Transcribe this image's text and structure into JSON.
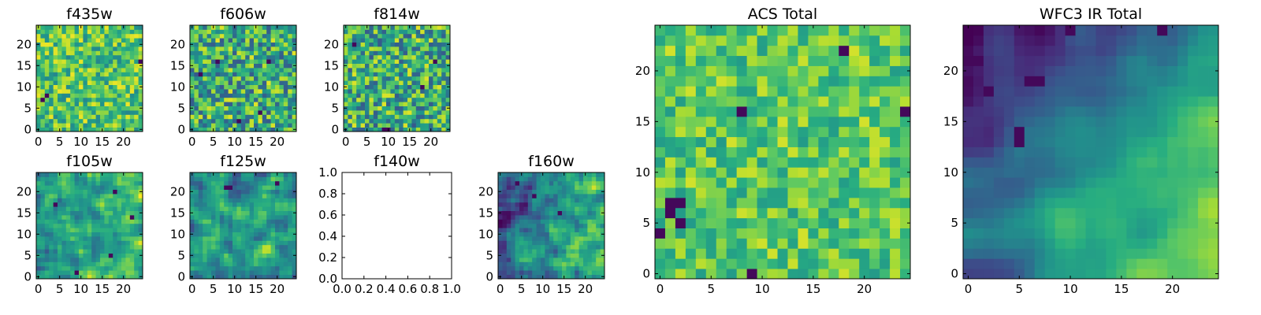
{
  "figure": {
    "colormap": "viridis",
    "grid_size": 25,
    "colors": {
      "viridis_low": "#440154",
      "viridis_mid": "#21918c",
      "viridis_high": "#fde725",
      "frame": "#000000",
      "background": "#ffffff"
    }
  },
  "chart_data": [
    {
      "id": "f435w",
      "type": "heatmap",
      "title": "f435w",
      "xticks": [
        "0",
        "5",
        "10",
        "15",
        "20"
      ],
      "yticks": [
        "0",
        "5",
        "10",
        "15",
        "20"
      ],
      "xlim": [
        0,
        25
      ],
      "ylim": [
        0,
        25
      ],
      "seed": 11,
      "mean": 0.72,
      "spread": 0.26,
      "smooth": 0,
      "gradient": [
        0,
        0
      ],
      "lows": [
        [
          1,
          7
        ],
        [
          2,
          8
        ],
        [
          24,
          16
        ]
      ]
    },
    {
      "id": "f606w",
      "type": "heatmap",
      "title": "f606w",
      "xticks": [
        "0",
        "5",
        "10",
        "15",
        "20"
      ],
      "yticks": [
        "0",
        "5",
        "10",
        "15",
        "20"
      ],
      "xlim": [
        0,
        25
      ],
      "ylim": [
        0,
        25
      ],
      "seed": 23,
      "mean": 0.62,
      "spread": 0.34,
      "smooth": 0,
      "gradient": [
        0,
        0
      ],
      "lows": [
        [
          6,
          16
        ],
        [
          18,
          16
        ],
        [
          2,
          13
        ],
        [
          16,
          4
        ],
        [
          11,
          2
        ]
      ]
    },
    {
      "id": "f814w",
      "type": "heatmap",
      "title": "f814w",
      "xticks": [
        "0",
        "5",
        "10",
        "15",
        "20"
      ],
      "yticks": [
        "0",
        "5",
        "10",
        "15",
        "20"
      ],
      "xlim": [
        0,
        25
      ],
      "ylim": [
        0,
        25
      ],
      "seed": 37,
      "mean": 0.62,
      "spread": 0.34,
      "smooth": 0,
      "gradient": [
        0,
        0
      ],
      "lows": [
        [
          9,
          0
        ],
        [
          10,
          0
        ],
        [
          2,
          20
        ],
        [
          21,
          16
        ],
        [
          18,
          10
        ]
      ]
    },
    {
      "id": "f105w",
      "type": "heatmap",
      "title": "f105w",
      "xticks": [
        "0",
        "5",
        "10",
        "15",
        "20"
      ],
      "yticks": [
        "0",
        "5",
        "10",
        "15",
        "20"
      ],
      "xlim": [
        0,
        25
      ],
      "ylim": [
        0,
        25
      ],
      "seed": 41,
      "mean": 0.6,
      "spread": 0.3,
      "smooth": 1,
      "gradient": [
        0.05,
        0
      ],
      "lows": [
        [
          18,
          20
        ],
        [
          4,
          17
        ],
        [
          9,
          1
        ],
        [
          17,
          5
        ],
        [
          22,
          14
        ]
      ]
    },
    {
      "id": "f125w",
      "type": "heatmap",
      "title": "f125w",
      "xticks": [
        "0",
        "5",
        "10",
        "15",
        "20"
      ],
      "yticks": [
        "0",
        "5",
        "10",
        "15",
        "20"
      ],
      "xlim": [
        0,
        25
      ],
      "ylim": [
        0,
        25
      ],
      "seed": 53,
      "mean": 0.55,
      "spread": 0.3,
      "smooth": 1,
      "gradient": [
        0.08,
        0
      ],
      "lows": [
        [
          8,
          21
        ],
        [
          9,
          21
        ],
        [
          20,
          22
        ]
      ]
    },
    {
      "id": "f140w",
      "type": "empty",
      "title": "f140w",
      "xticks": [
        "0.0",
        "0.2",
        "0.4",
        "0.6",
        "0.8",
        "1.0"
      ],
      "yticks": [
        "0.0",
        "0.2",
        "0.4",
        "0.6",
        "0.8",
        "1.0"
      ],
      "xlim": [
        0,
        1
      ],
      "ylim": [
        0,
        1
      ]
    },
    {
      "id": "f160w",
      "type": "heatmap",
      "title": "f160w",
      "xticks": [
        "0",
        "5",
        "10",
        "15",
        "20"
      ],
      "yticks": [
        "0",
        "5",
        "10",
        "15",
        "20"
      ],
      "xlim": [
        0,
        25
      ],
      "ylim": [
        0,
        25
      ],
      "seed": 67,
      "mean": 0.5,
      "spread": 0.32,
      "smooth": 1,
      "gradient": [
        0.2,
        -0.05
      ],
      "lows": [
        [
          4,
          22
        ],
        [
          8,
          19
        ],
        [
          14,
          15
        ]
      ]
    },
    {
      "id": "acs-total",
      "type": "heatmap",
      "title": "ACS Total",
      "xticks": [
        "0",
        "5",
        "10",
        "15",
        "20"
      ],
      "yticks": [
        "0",
        "5",
        "10",
        "15",
        "20"
      ],
      "xlim": [
        0,
        25
      ],
      "ylim": [
        0,
        25
      ],
      "seed": 79,
      "mean": 0.74,
      "spread": 0.2,
      "smooth": 0,
      "gradient": [
        0,
        0
      ],
      "lows": [
        [
          1,
          7
        ],
        [
          2,
          7
        ],
        [
          1,
          6
        ],
        [
          2,
          5
        ],
        [
          0,
          4
        ],
        [
          8,
          16
        ],
        [
          18,
          22
        ],
        [
          24,
          16
        ],
        [
          9,
          0
        ]
      ]
    },
    {
      "id": "wfc3-ir-total",
      "type": "heatmap",
      "title": "WFC3 IR Total",
      "xticks": [
        "0",
        "5",
        "10",
        "15",
        "20"
      ],
      "yticks": [
        "0",
        "5",
        "10",
        "15",
        "20"
      ],
      "xlim": [
        0,
        25
      ],
      "ylim": [
        0,
        25
      ],
      "seed": 97,
      "mean": 0.45,
      "spread": 0.12,
      "smooth": 2,
      "gradient": [
        0.22,
        -0.2
      ],
      "lows": [
        [
          0,
          21
        ],
        [
          1,
          21
        ],
        [
          6,
          19
        ],
        [
          7,
          19
        ],
        [
          2,
          18
        ],
        [
          5,
          14
        ],
        [
          5,
          13
        ],
        [
          10,
          24
        ],
        [
          19,
          24
        ]
      ]
    }
  ]
}
